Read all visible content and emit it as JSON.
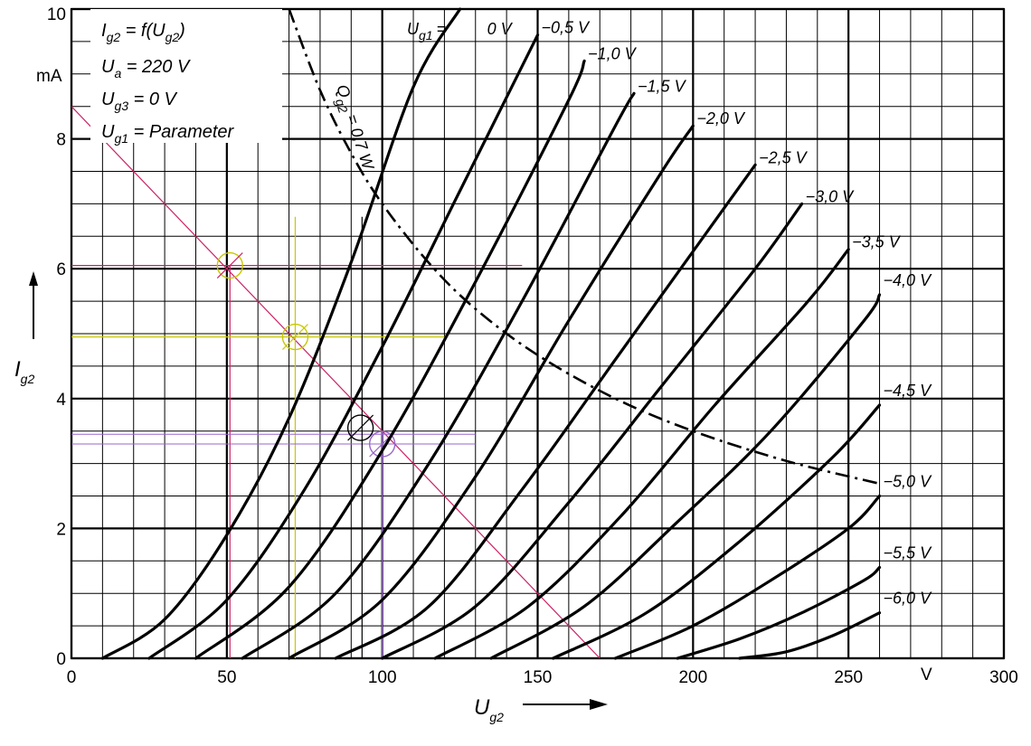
{
  "chart_data": {
    "type": "line",
    "xlabel": "U",
    "xlabel_sub": "g2",
    "ylabel": "I",
    "ylabel_sub": "g2",
    "xunit": "V",
    "yunit": "mA",
    "xlim": [
      0,
      300
    ],
    "ylim": [
      0,
      10
    ],
    "x_ticks": [
      0,
      50,
      100,
      150,
      200,
      250,
      300
    ],
    "x_tick_labels": [
      "0",
      "50",
      "100",
      "150",
      "200",
      "250",
      "300"
    ],
    "y_ticks": [
      0,
      2,
      4,
      6,
      8,
      10
    ],
    "y_tick_labels": [
      "0",
      "2",
      "4",
      "6",
      "8",
      "10"
    ],
    "grid": true,
    "info": [
      {
        "a": "I",
        "sub": "g2",
        "b": " = f(U",
        "sub2": "g2",
        "c": ")"
      },
      {
        "a": "U",
        "sub": "a",
        "b": " = 220 V",
        "sub2": "",
        "c": ""
      },
      {
        "a": "U",
        "sub": "g3",
        "b": " = 0 V",
        "sub2": "",
        "c": ""
      },
      {
        "a": "U",
        "sub": "g1",
        "b": " = Parameter",
        "sub2": "",
        "c": ""
      }
    ],
    "param_prefix": "U",
    "param_prefix_sub": "g1",
    "param_prefix_eq": "=",
    "series": [
      {
        "name": "0 V",
        "x": [
          10,
          30,
          50,
          70,
          90,
          110,
          125
        ],
        "y": [
          0,
          0.6,
          1.9,
          3.7,
          6.1,
          8.8,
          10.0
        ]
      },
      {
        "name": "−0,5 V",
        "x": [
          25,
          50,
          75,
          100,
          125,
          150
        ],
        "y": [
          0,
          0.9,
          2.6,
          4.8,
          7.2,
          9.6
        ]
      },
      {
        "name": "−1,0 V",
        "x": [
          40,
          70,
          100,
          130,
          160,
          165
        ],
        "y": [
          0,
          1.1,
          3.2,
          5.8,
          8.6,
          9.2
        ]
      },
      {
        "name": "−1,5 V",
        "x": [
          55,
          85,
          115,
          145,
          175,
          181
        ],
        "y": [
          0,
          1.0,
          3.0,
          5.5,
          8.2,
          8.7
        ]
      },
      {
        "name": "−2,0 V",
        "x": [
          70,
          100,
          130,
          160,
          190,
          200
        ],
        "y": [
          0,
          0.9,
          2.8,
          5.2,
          7.5,
          8.2
        ]
      },
      {
        "name": "−2,5 V",
        "x": [
          85,
          115,
          145,
          175,
          205,
          220
        ],
        "y": [
          0,
          0.8,
          2.6,
          4.6,
          6.6,
          7.6
        ]
      },
      {
        "name": "−3,0 V",
        "x": [
          100,
          130,
          160,
          190,
          220,
          235
        ],
        "y": [
          0,
          0.8,
          2.4,
          4.2,
          6.0,
          7.0
        ]
      },
      {
        "name": "−3,5 V",
        "x": [
          117,
          147,
          177,
          207,
          237,
          250
        ],
        "y": [
          0,
          0.8,
          2.2,
          3.9,
          5.5,
          6.3
        ]
      },
      {
        "name": "−4,0 V",
        "x": [
          135,
          165,
          195,
          225,
          255,
          260
        ],
        "y": [
          0,
          0.8,
          2.1,
          3.5,
          5.2,
          5.6
        ]
      },
      {
        "name": "−4,5 V",
        "x": [
          155,
          185,
          215,
          245,
          260
        ],
        "y": [
          0,
          0.7,
          1.8,
          3.1,
          3.9
        ]
      },
      {
        "name": "−5,0 V",
        "x": [
          175,
          200,
          225,
          250,
          260
        ],
        "y": [
          0,
          0.5,
          1.2,
          2.0,
          2.5
        ]
      },
      {
        "name": "−5,5 V",
        "x": [
          195,
          215,
          235,
          255,
          260
        ],
        "y": [
          0,
          0.3,
          0.7,
          1.2,
          1.4
        ]
      },
      {
        "name": "−6,0 V",
        "x": [
          215,
          230,
          245,
          260
        ],
        "y": [
          0,
          0.1,
          0.35,
          0.7
        ]
      }
    ],
    "power_curve": {
      "label": "Q",
      "label_sub": "g2",
      "label_rest": " = 0,7 W",
      "x": [
        70,
        80,
        90,
        100,
        115,
        130,
        150,
        175,
        200,
        230,
        260
      ],
      "y": [
        10,
        8.75,
        7.78,
        7.0,
        6.09,
        5.38,
        4.67,
        4.0,
        3.5,
        3.04,
        2.69
      ]
    },
    "load_line": {
      "x": [
        0,
        170
      ],
      "y": [
        8.5,
        0
      ]
    },
    "markers": [
      {
        "x": 51,
        "y": 6.05,
        "color": "#c8c800",
        "cross": "#cc2266"
      },
      {
        "x": 72,
        "y": 4.95,
        "color": "#c8c800",
        "cross": "#c8c800"
      },
      {
        "x": 93,
        "y": 3.55,
        "color": "#000000",
        "cross": "#000000"
      },
      {
        "x": 100,
        "y": 3.3,
        "color": "#9966cc",
        "cross": "#9966cc"
      }
    ],
    "colors": {
      "grid": "#000000",
      "curves": "#000000",
      "load_line": "#cc2266",
      "yellow": "#c8c800",
      "purple": "#9966cc"
    }
  }
}
